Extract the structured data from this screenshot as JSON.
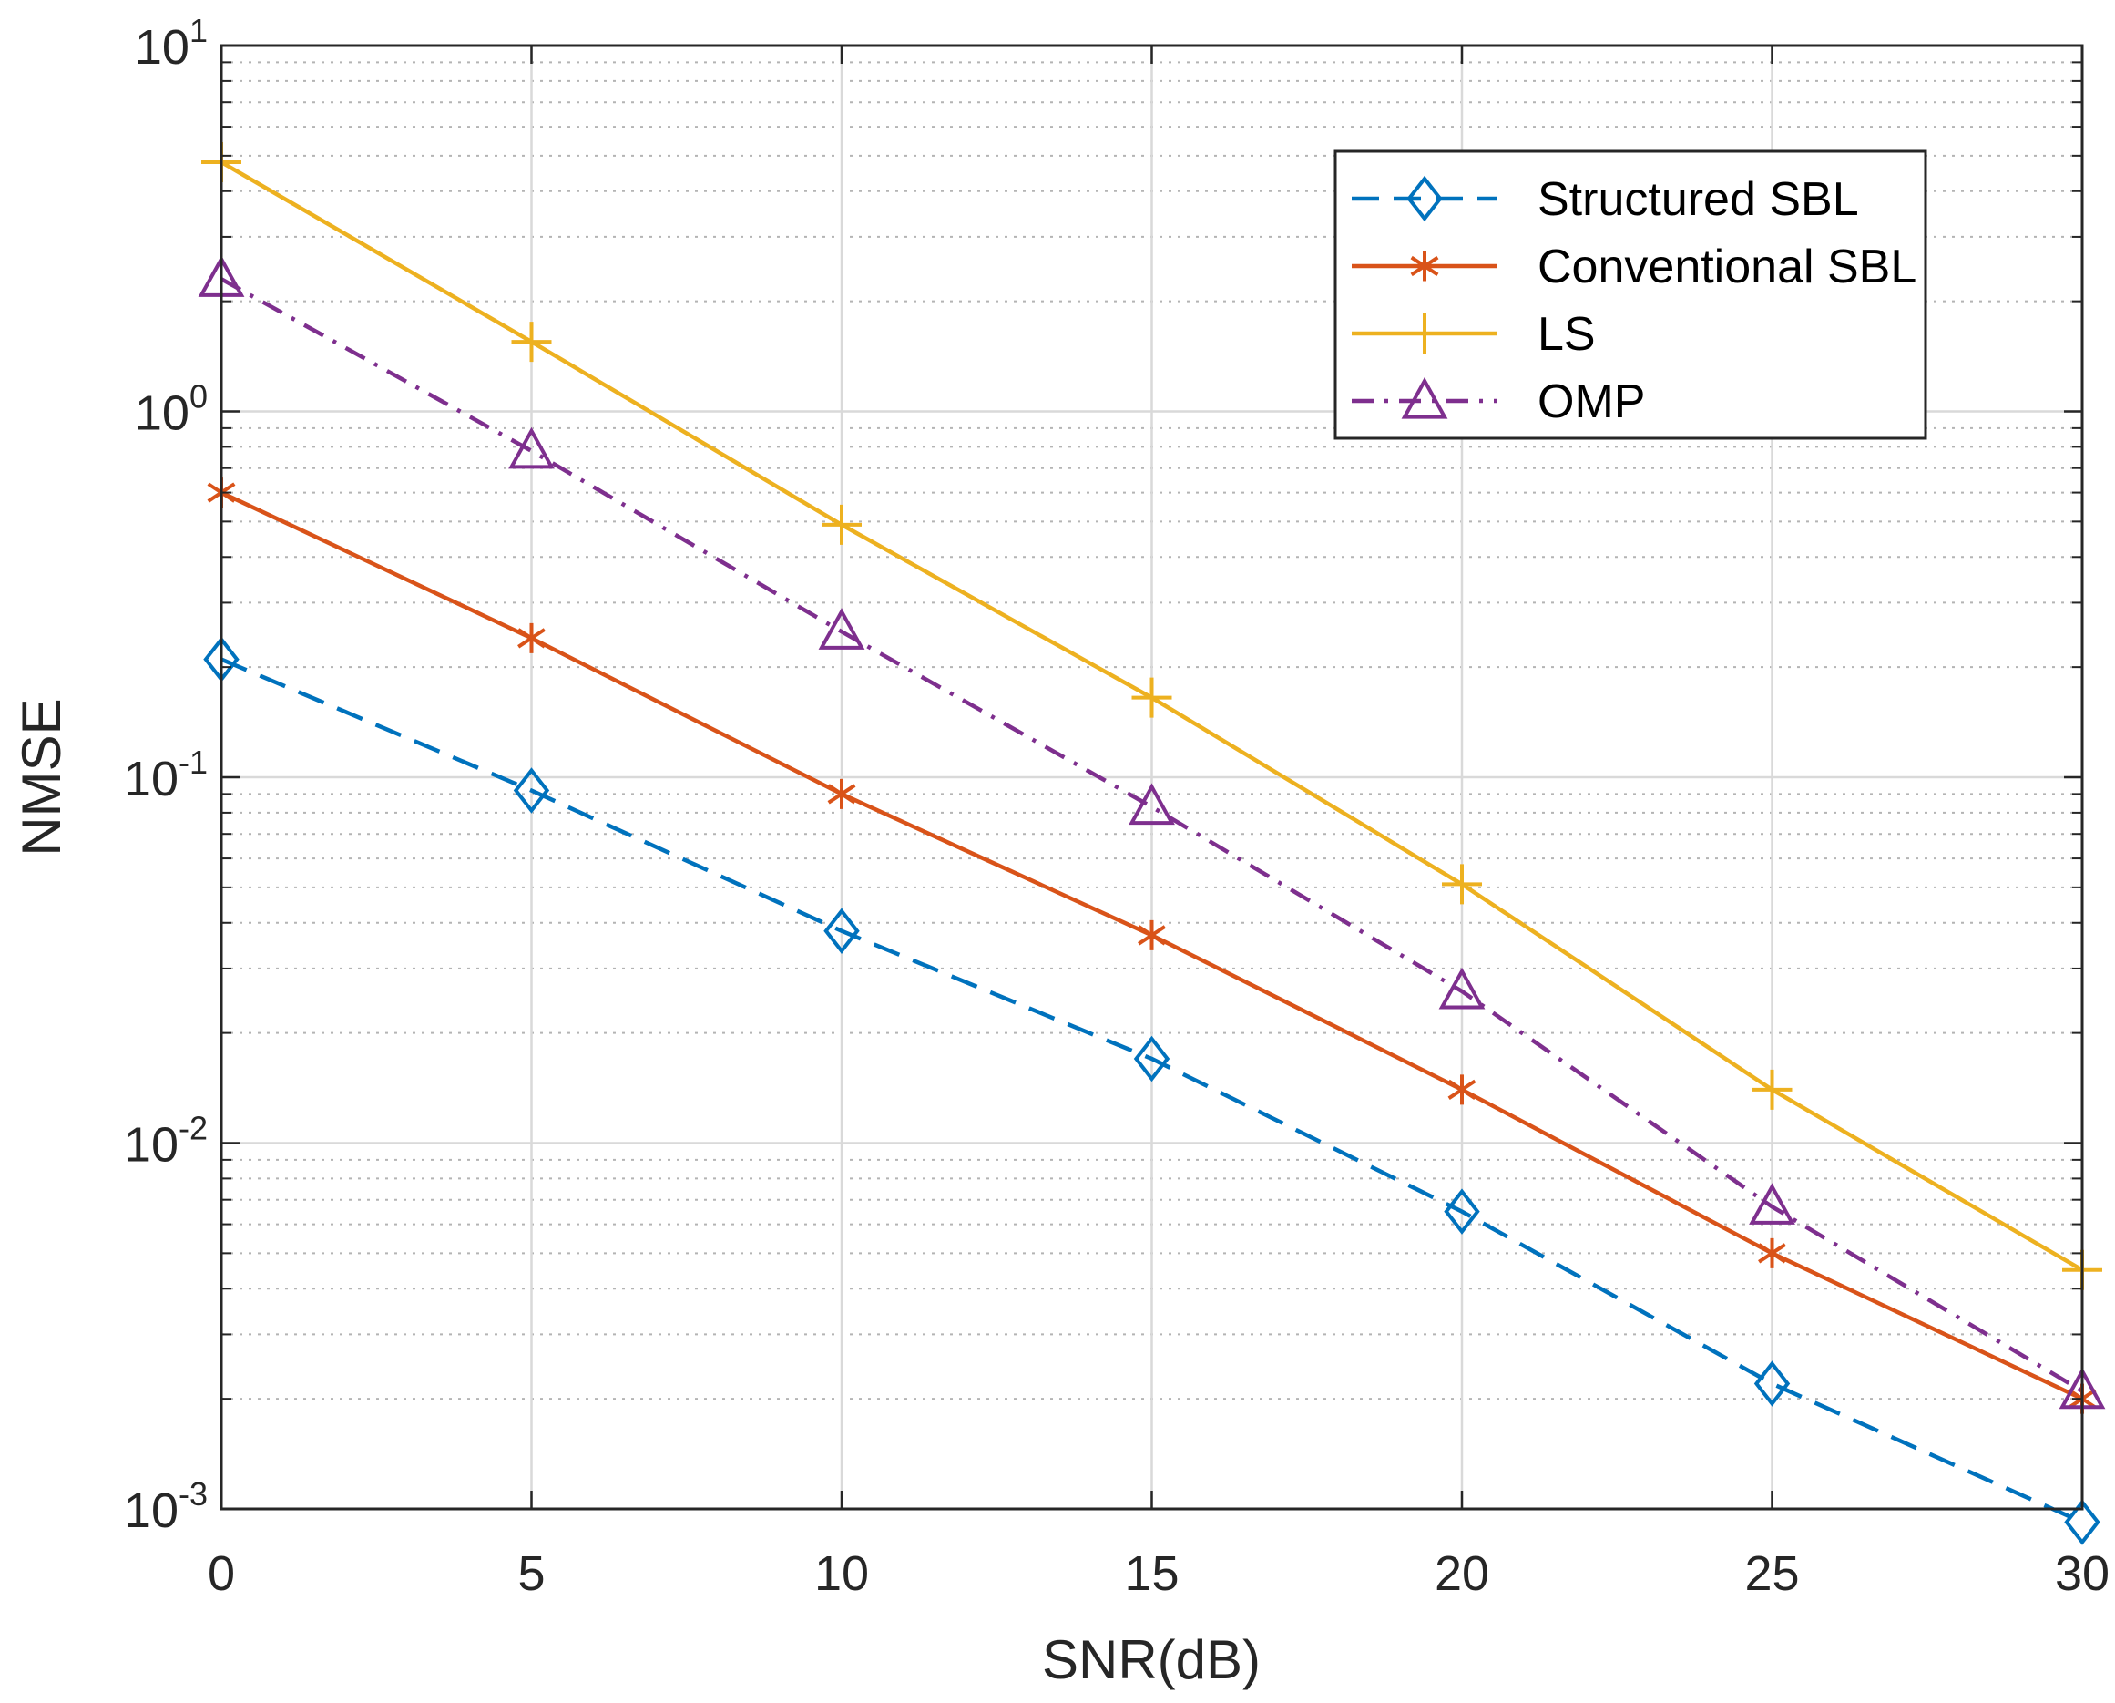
{
  "chart_data": {
    "type": "line",
    "title": "",
    "xlabel": "SNR(dB)",
    "ylabel": "NMSE",
    "xscale": "linear",
    "yscale": "log",
    "xlim": [
      0,
      30
    ],
    "ylim": [
      0.001,
      10
    ],
    "grid": true,
    "minor_grid": true,
    "legend_position": "top-right",
    "x": [
      0,
      5,
      10,
      15,
      20,
      25,
      30
    ],
    "x_ticks": [
      {
        "value": 0,
        "label": "0"
      },
      {
        "value": 5,
        "label": "5"
      },
      {
        "value": 10,
        "label": "10"
      },
      {
        "value": 15,
        "label": "15"
      },
      {
        "value": 20,
        "label": "20"
      },
      {
        "value": 25,
        "label": "25"
      },
      {
        "value": 30,
        "label": "30"
      }
    ],
    "y_ticks": [
      {
        "value": 10,
        "base": "10",
        "exp": "1"
      },
      {
        "value": 1,
        "base": "10",
        "exp": "0"
      },
      {
        "value": 0.1,
        "base": "10",
        "exp": "-1"
      },
      {
        "value": 0.01,
        "base": "10",
        "exp": "-2"
      },
      {
        "value": 0.001,
        "base": "10",
        "exp": "-3"
      }
    ],
    "series": [
      {
        "name": "Structured SBL",
        "color": "#0072BD",
        "line": "dashed",
        "marker": "diamond",
        "values": [
          0.21,
          0.092,
          0.038,
          0.017,
          0.0065,
          0.0022,
          0.00092
        ]
      },
      {
        "name": "Conventional SBL",
        "color": "#D95319",
        "line": "solid",
        "marker": "asterisk",
        "values": [
          0.6,
          0.24,
          0.09,
          0.037,
          0.014,
          0.005,
          0.002
        ]
      },
      {
        "name": "LS",
        "color": "#EDB120",
        "line": "solid",
        "marker": "plus",
        "values": [
          4.8,
          1.55,
          0.49,
          0.165,
          0.051,
          0.014,
          0.0045
        ]
      },
      {
        "name": "OMP",
        "color": "#7E2F8E",
        "line": "dashdot",
        "marker": "triangle",
        "values": [
          2.3,
          0.78,
          0.25,
          0.083,
          0.026,
          0.0067,
          0.0021
        ]
      }
    ]
  }
}
